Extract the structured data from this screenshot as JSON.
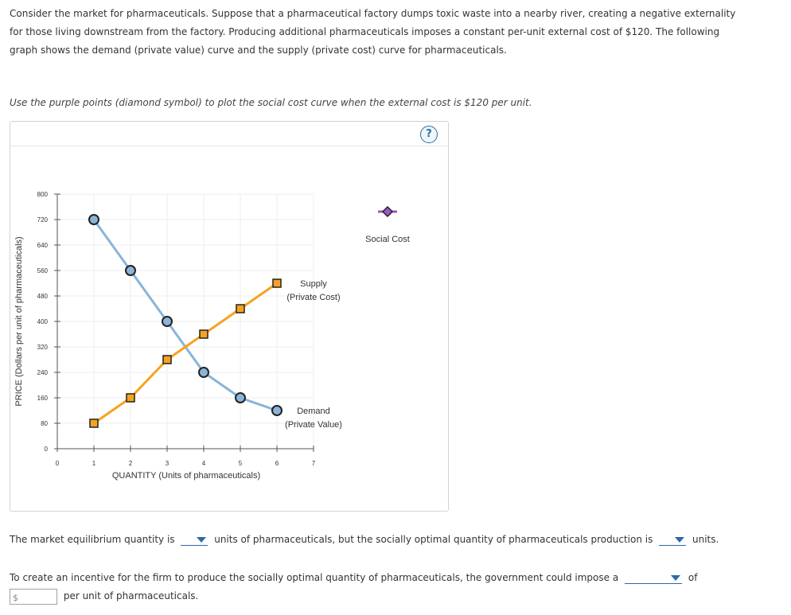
{
  "intro": {
    "line1": "Consider the market for pharmaceuticals. Suppose that a pharmaceutical factory dumps toxic waste into a nearby river, creating a negative externality",
    "line2": "for those living downstream from the factory. Producing additional pharmaceuticals imposes a constant per-unit external cost of $120. The following",
    "line3": "graph shows the demand (private value) curve and the supply (private cost) curve for pharmaceuticals."
  },
  "instruction": "Use the purple points (diamond symbol) to plot the social cost curve when the external cost is $120 per unit.",
  "help_icon": "question-mark-icon",
  "chart_data": {
    "type": "line",
    "xlabel": "QUANTITY (Units of pharmaceuticals)",
    "ylabel": "PRICE (Dollars per unit of pharmaceuticals)",
    "xlim": [
      0,
      7
    ],
    "ylim": [
      0,
      800
    ],
    "xticks": [
      "0",
      "1",
      "2",
      "3",
      "4",
      "5",
      "6",
      "7"
    ],
    "yticks": [
      "0",
      "80",
      "160",
      "240",
      "320",
      "400",
      "480",
      "560",
      "640",
      "720",
      "800"
    ],
    "series": [
      {
        "name": "Demand (Private Value)",
        "label1": "Demand",
        "label2": "(Private Value)",
        "color": "#8ab4d8",
        "marker": "circle",
        "x": [
          1,
          2,
          3,
          4,
          5,
          6
        ],
        "y": [
          720,
          560,
          400,
          240,
          160,
          120
        ]
      },
      {
        "name": "Supply (Private Cost)",
        "label1": "Supply",
        "label2": "(Private Cost)",
        "color": "#f7a21e",
        "marker": "square",
        "x": [
          1,
          2,
          3,
          4,
          5,
          6
        ],
        "y": [
          80,
          160,
          280,
          360,
          440,
          520
        ]
      }
    ],
    "palette_tool": {
      "label": "Social Cost",
      "color": "#9b59c8",
      "marker": "diamond"
    }
  },
  "questions": {
    "q1_part1": "The market equilibrium quantity is",
    "q1_part2": "units of pharmaceuticals, but the socially optimal quantity of pharmaceuticals production is",
    "q1_part3": "units.",
    "q2_part1": "To create an incentive for the firm to produce the socially optimal quantity of pharmaceuticals, the government could impose a",
    "q2_part2": "of",
    "dollar_prefix": "$",
    "q3_part": "per unit of pharmaceuticals."
  }
}
